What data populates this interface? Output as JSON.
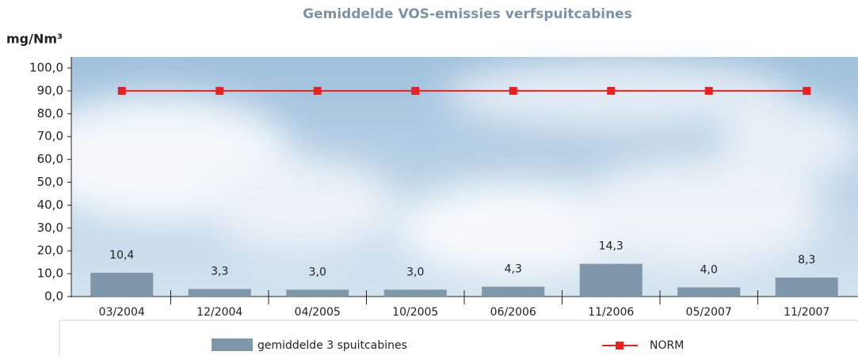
{
  "chart_data": {
    "type": "bar",
    "title": "Gemiddelde VOS-emissies verfspuitcabines",
    "y_label": "mg/Nm³",
    "categories": [
      "03/2004",
      "12/2004",
      "04/2005",
      "10/2005",
      "06/2006",
      "11/2006",
      "05/2007",
      "11/2007"
    ],
    "series": [
      {
        "name": "gemiddelde 3 spuitcabines",
        "type": "bar",
        "color": "#7f97aa",
        "values": [
          10.4,
          3.3,
          3.0,
          3.0,
          4.3,
          14.3,
          4.0,
          8.3
        ],
        "value_labels": [
          "10,4",
          "3,3",
          "3,0",
          "3,0",
          "4,3",
          "14,3",
          "4,0",
          "8,3"
        ]
      },
      {
        "name": "NORM",
        "type": "line",
        "color": "#e42320",
        "values": [
          90,
          90,
          90,
          90,
          90,
          90,
          90,
          90
        ]
      }
    ],
    "ylim": [
      0,
      100
    ],
    "yticks": [
      {
        "value": 0,
        "label": "0,0"
      },
      {
        "value": 10,
        "label": "10,0"
      },
      {
        "value": 20,
        "label": "20,0"
      },
      {
        "value": 30,
        "label": "30,0"
      },
      {
        "value": 40,
        "label": "40,0"
      },
      {
        "value": 50,
        "label": "50,0"
      },
      {
        "value": 60,
        "label": "60,0"
      },
      {
        "value": 70,
        "label": "70,0"
      },
      {
        "value": 80,
        "label": "80,0"
      },
      {
        "value": 90,
        "label": "90,0"
      },
      {
        "value": 100,
        "label": "100,0"
      }
    ],
    "grid": false
  }
}
